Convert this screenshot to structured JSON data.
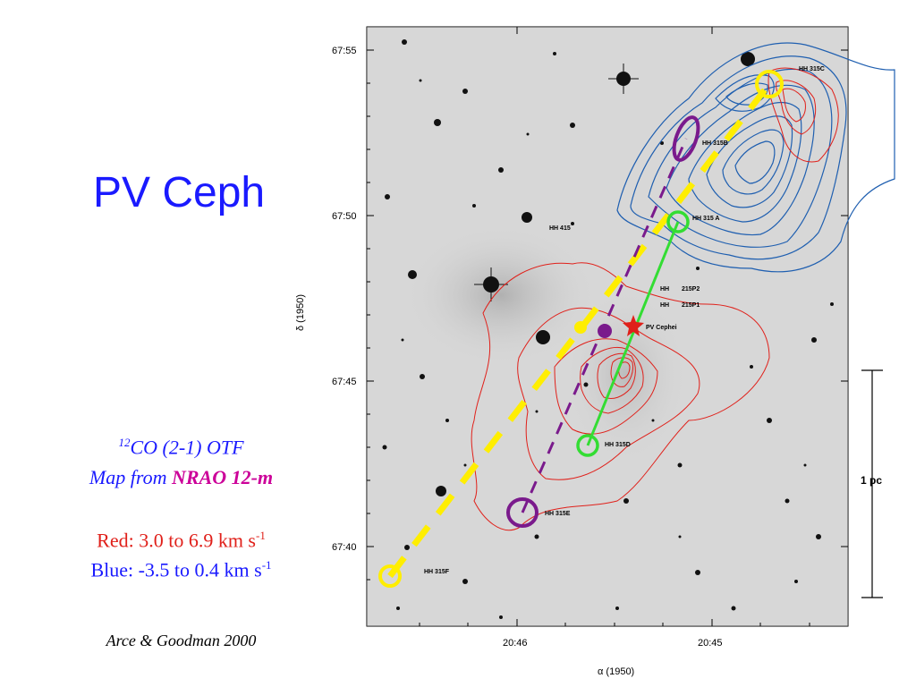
{
  "title": "PV Ceph",
  "caption": {
    "superscript": "12",
    "line1_rest": "CO (2-1) OTF",
    "line2_prefix": "Map from ",
    "line2_highlight": "NRAO 12-m"
  },
  "velocities": {
    "red_text": "Red: 3.0 to 6.9 km s",
    "red_exp": "-1",
    "blue_text": "Blue: -3.5 to 0.4 km s",
    "blue_exp": "-1"
  },
  "reference": "Arce & Goodman 2000",
  "axes": {
    "y_ticks": [
      "67:55",
      "67:50",
      "67:45",
      "67:40"
    ],
    "x_ticks": [
      "20:46",
      "20:45"
    ],
    "y_label_symbol": "δ",
    "y_label_epoch": "(1950)",
    "x_label_symbol": "α",
    "x_label_epoch": "(1950)"
  },
  "scale_bar": {
    "label": "1 pc"
  },
  "objects": {
    "hh315c": "HH 315C",
    "hh315b": "HH 315B",
    "hh315a": "HH 315 A",
    "hh415": "HH 415",
    "hh215p2_a": "HH",
    "hh215p2_b": "215P2",
    "hh215p1_a": "HH",
    "hh215p1_b": "215P1",
    "pvcephei": "PV Cephei",
    "hh315d": "HH 315D",
    "hh315e": "HH 315E",
    "hh315f": "HH 315F"
  },
  "colors": {
    "title_blue": "#1a1aff",
    "red_contours": "#e0201a",
    "blue_contours": "#1f5fb0",
    "yellow_outflow": "#ffee00",
    "purple_outflow": "#7a1a8c",
    "green_outflow": "#33dd33",
    "nrao_magenta": "#cc0099"
  }
}
